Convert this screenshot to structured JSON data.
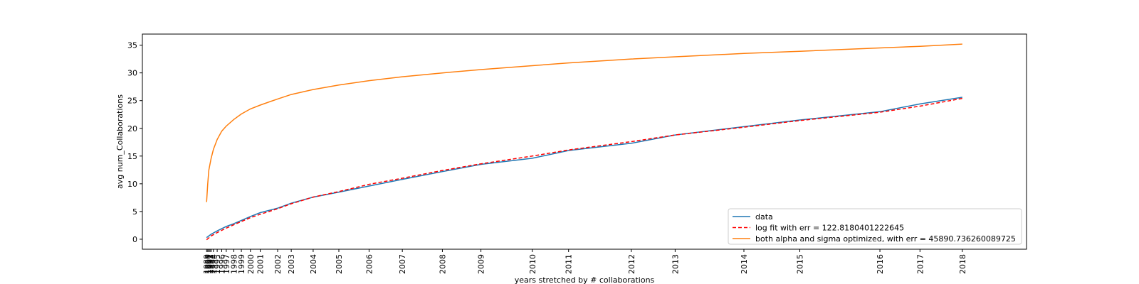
{
  "chart_data": {
    "type": "line",
    "title": "",
    "xlabel": "years stretched by # collaborations",
    "ylabel": "avg num_Collaborations",
    "ylim": [
      -1.8,
      37.0
    ],
    "yticks": [
      0,
      5,
      10,
      15,
      20,
      25,
      30,
      35
    ],
    "xlim": [
      -0.085,
      1.085
    ],
    "x_ticks": [
      {
        "label": "1989",
        "x": 0.0
      },
      {
        "label": "1990",
        "x": 0.0015
      },
      {
        "label": "1991",
        "x": 0.003
      },
      {
        "label": "1992",
        "x": 0.0045
      },
      {
        "label": "1993",
        "x": 0.006
      },
      {
        "label": "1994",
        "x": 0.009
      },
      {
        "label": "1995",
        "x": 0.014
      },
      {
        "label": "1996",
        "x": 0.02
      },
      {
        "label": "1997",
        "x": 0.026
      },
      {
        "label": "1998",
        "x": 0.036
      },
      {
        "label": "1999",
        "x": 0.046
      },
      {
        "label": "2000",
        "x": 0.058
      },
      {
        "label": "2001",
        "x": 0.071
      },
      {
        "label": "2002",
        "x": 0.094
      },
      {
        "label": "2003",
        "x": 0.112
      },
      {
        "label": "2004",
        "x": 0.141
      },
      {
        "label": "2005",
        "x": 0.175
      },
      {
        "label": "2006",
        "x": 0.215
      },
      {
        "label": "2007",
        "x": 0.259
      },
      {
        "label": "2008",
        "x": 0.312
      },
      {
        "label": "2009",
        "x": 0.363
      },
      {
        "label": "2010",
        "x": 0.431
      },
      {
        "label": "2011",
        "x": 0.479
      },
      {
        "label": "2012",
        "x": 0.562
      },
      {
        "label": "2013",
        "x": 0.62
      },
      {
        "label": "2014",
        "x": 0.711
      },
      {
        "label": "2015",
        "x": 0.785
      },
      {
        "label": "2016",
        "x": 0.891
      },
      {
        "label": "2017",
        "x": 0.944
      },
      {
        "label": "2018",
        "x": 1.0
      }
    ],
    "series": [
      {
        "name": "data",
        "color": "#1f77b4",
        "dash": "solid",
        "x": [
          0.0,
          0.006,
          0.014,
          0.026,
          0.036,
          0.046,
          0.058,
          0.071,
          0.094,
          0.112,
          0.141,
          0.175,
          0.215,
          0.259,
          0.312,
          0.363,
          0.431,
          0.479,
          0.562,
          0.62,
          0.711,
          0.785,
          0.891,
          0.944,
          1.0
        ],
        "y": [
          0.3,
          0.9,
          1.5,
          2.3,
          2.8,
          3.4,
          4.1,
          4.8,
          5.6,
          6.5,
          7.6,
          8.5,
          9.6,
          10.8,
          12.2,
          13.5,
          14.6,
          16.0,
          17.3,
          18.8,
          20.3,
          21.5,
          23.0,
          24.4,
          25.6
        ]
      },
      {
        "name": "log fit with err = 122.8180401222645",
        "color": "#ff0000",
        "dash": "dashed",
        "x": [
          0.0,
          0.006,
          0.014,
          0.026,
          0.036,
          0.046,
          0.058,
          0.071,
          0.094,
          0.112,
          0.141,
          0.175,
          0.215,
          0.259,
          0.312,
          0.363,
          0.431,
          0.479,
          0.562,
          0.62,
          0.711,
          0.785,
          0.891,
          0.944,
          1.0
        ],
        "y": [
          -0.1,
          0.6,
          1.2,
          2.0,
          2.6,
          3.2,
          3.9,
          4.5,
          5.5,
          6.4,
          7.6,
          8.6,
          9.9,
          11.0,
          12.4,
          13.6,
          15.0,
          16.1,
          17.6,
          18.8,
          20.2,
          21.4,
          22.9,
          24.0,
          25.4
        ]
      },
      {
        "name": "both alpha and sigma optimized, with err = 45890.736260089725",
        "color": "#ff7f0e",
        "dash": "solid",
        "x": [
          0.0,
          0.0015,
          0.003,
          0.006,
          0.009,
          0.014,
          0.02,
          0.026,
          0.036,
          0.046,
          0.058,
          0.071,
          0.094,
          0.112,
          0.141,
          0.175,
          0.215,
          0.259,
          0.312,
          0.363,
          0.431,
          0.479,
          0.562,
          0.62,
          0.711,
          0.785,
          0.891,
          0.944,
          1.0
        ],
        "y": [
          6.7,
          10.0,
          12.5,
          14.6,
          16.2,
          18.0,
          19.5,
          20.4,
          21.6,
          22.6,
          23.5,
          24.2,
          25.3,
          26.1,
          27.0,
          27.8,
          28.6,
          29.3,
          30.0,
          30.6,
          31.3,
          31.8,
          32.5,
          32.9,
          33.5,
          33.9,
          34.5,
          34.8,
          35.2
        ]
      }
    ],
    "legend": {
      "placement": "lower-right",
      "entries": [
        {
          "label": "data",
          "color": "#1f77b4",
          "dash": "solid"
        },
        {
          "label": "log fit with err = 122.8180401222645",
          "color": "#ff0000",
          "dash": "dashed"
        },
        {
          "label": "both alpha and sigma optimized, with err = 45890.736260089725",
          "color": "#ff7f0e",
          "dash": "solid"
        }
      ]
    },
    "grid": false
  }
}
